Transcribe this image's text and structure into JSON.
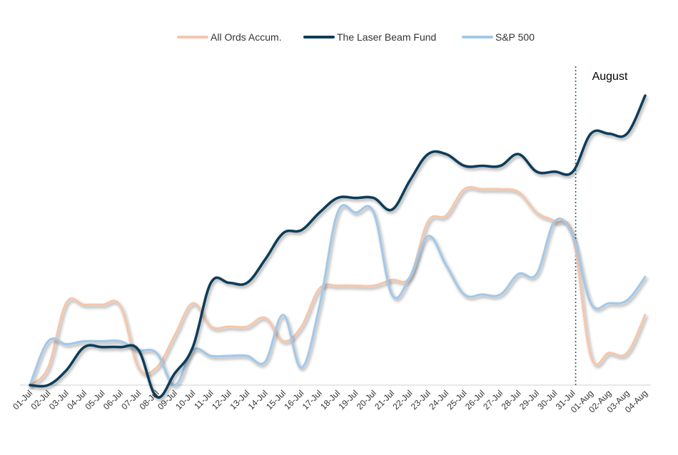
{
  "chart_data": {
    "type": "line",
    "categories": [
      "01-Jul",
      "02-Jul",
      "03-Jul",
      "04-Jul",
      "05-Jul",
      "06-Jul",
      "07-Jul",
      "08-Jul",
      "09-Jul",
      "10-Jul",
      "11-Jul",
      "12-Jul",
      "13-Jul",
      "14-Jul",
      "15-Jul",
      "16-Jul",
      "17-Jul",
      "18-Jul",
      "19-Jul",
      "20-Jul",
      "21-Jul",
      "22-Jul",
      "23-Jul",
      "24-Jul",
      "25-Jul",
      "26-Jul",
      "27-Jul",
      "28-Jul",
      "29-Jul",
      "30-Jul",
      "31-Jul",
      "01-Aug",
      "02-Aug",
      "03-Aug",
      "04-Aug"
    ],
    "series": [
      {
        "name": "All Ords Accum.",
        "color": "#F4C7AC",
        "values": [
          0,
          6,
          28,
          27.5,
          27.5,
          27,
          6,
          6,
          17,
          28,
          20,
          20,
          20,
          23,
          15,
          20,
          33,
          34,
          34,
          34,
          36,
          37,
          56,
          58,
          67,
          67,
          67,
          66,
          59,
          56,
          51,
          10,
          11,
          11,
          24
        ]
      },
      {
        "name": "The Laser Beam Fund",
        "color": "#0E3D5A",
        "values": [
          0,
          0,
          5,
          13,
          13,
          13,
          12,
          -4,
          4,
          13,
          35,
          35,
          35,
          43,
          52,
          53,
          59,
          64,
          64,
          64,
          60,
          70,
          79,
          79,
          75,
          75,
          75,
          79,
          73,
          73,
          73,
          86,
          86,
          86,
          99
        ]
      },
      {
        "name": "S&P 500",
        "color": "#A3C8E8",
        "values": [
          0,
          15,
          14,
          15,
          15,
          15,
          12,
          11,
          0,
          12,
          10,
          10,
          10,
          8,
          24,
          6,
          27,
          59,
          59,
          59,
          31,
          37,
          51,
          41,
          31,
          31,
          31,
          38,
          38,
          56,
          51,
          28,
          28,
          29,
          37
        ]
      }
    ],
    "legend": "top-center",
    "grid": false,
    "annotations": [
      {
        "text": "August",
        "after_category": "31-Jul"
      }
    ]
  }
}
